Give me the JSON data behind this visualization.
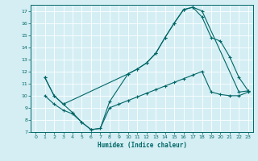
{
  "xlabel": "Humidex (Indice chaleur)",
  "background_color": "#d4eef4",
  "grid_color": "#ffffff",
  "line_color": "#006666",
  "xlim": [
    -0.5,
    23.5
  ],
  "ylim": [
    7,
    17.5
  ],
  "xticks": [
    0,
    1,
    2,
    3,
    4,
    5,
    6,
    7,
    8,
    9,
    10,
    11,
    12,
    13,
    14,
    15,
    16,
    17,
    18,
    19,
    20,
    21,
    22,
    23
  ],
  "yticks": [
    7,
    8,
    9,
    10,
    11,
    12,
    13,
    14,
    15,
    16,
    17
  ],
  "curve1_x": [
    1,
    2,
    3,
    4,
    5,
    6,
    7,
    8,
    10,
    11,
    12,
    13,
    14,
    15,
    16,
    17,
    18,
    22,
    23
  ],
  "curve1_y": [
    11.5,
    10.0,
    9.3,
    8.6,
    7.8,
    7.2,
    7.3,
    9.5,
    11.8,
    12.2,
    12.7,
    13.5,
    14.8,
    16.0,
    17.1,
    17.3,
    17.0,
    10.3,
    10.4
  ],
  "curve2_x": [
    1,
    2,
    3,
    10,
    11,
    12,
    13,
    14,
    15,
    16,
    17,
    18,
    19,
    20,
    21,
    22,
    23
  ],
  "curve2_y": [
    11.5,
    10.0,
    9.3,
    11.8,
    12.2,
    12.7,
    13.5,
    14.8,
    16.0,
    17.1,
    17.3,
    16.5,
    14.8,
    14.5,
    13.2,
    11.5,
    10.4
  ],
  "curve3_x": [
    1,
    2,
    3,
    4,
    5,
    6,
    7,
    8,
    9,
    10,
    11,
    12,
    13,
    14,
    15,
    16,
    17,
    18,
    19,
    20,
    21,
    22,
    23
  ],
  "curve3_y": [
    10.0,
    9.3,
    8.8,
    8.5,
    7.8,
    7.2,
    7.3,
    9.0,
    9.3,
    9.6,
    9.9,
    10.2,
    10.5,
    10.8,
    11.1,
    11.4,
    11.7,
    12.0,
    10.3,
    10.1,
    10.0,
    10.0,
    10.3
  ]
}
